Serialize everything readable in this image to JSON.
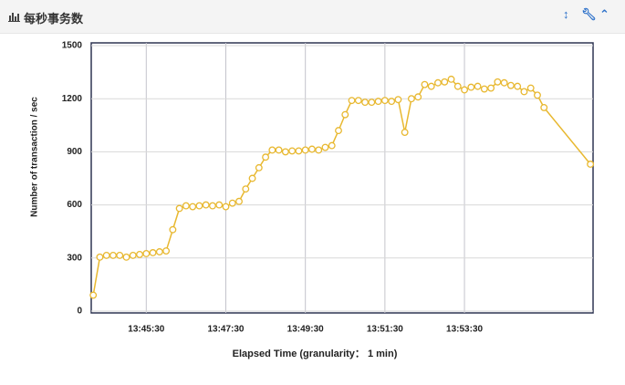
{
  "header": {
    "title": "每秒事务数"
  },
  "chart_data": {
    "type": "line",
    "y_label": "Number of transaction / sec",
    "x_label": "Elapsed Time (granularity： 1 min)",
    "color": "#e8b830",
    "grid": true,
    "ylim": [
      0,
      1500
    ],
    "yticks": [
      0,
      300,
      600,
      900,
      1200,
      1500
    ],
    "xlim": [
      "13:44:07",
      "13:56:44"
    ],
    "xticks": [
      "13:45:30",
      "13:47:30",
      "13:49:30",
      "13:51:30",
      "13:53:30"
    ],
    "x": [
      "13:44:10",
      "13:44:20",
      "13:44:30",
      "13:44:40",
      "13:44:50",
      "13:45:00",
      "13:45:10",
      "13:45:20",
      "13:45:30",
      "13:45:40",
      "13:45:50",
      "13:46:00",
      "13:46:10",
      "13:46:20",
      "13:46:30",
      "13:46:40",
      "13:46:50",
      "13:47:00",
      "13:47:10",
      "13:47:20",
      "13:47:30",
      "13:47:40",
      "13:47:50",
      "13:48:00",
      "13:48:10",
      "13:48:20",
      "13:48:30",
      "13:48:40",
      "13:48:50",
      "13:49:00",
      "13:49:10",
      "13:49:20",
      "13:49:30",
      "13:49:40",
      "13:49:50",
      "13:50:00",
      "13:50:10",
      "13:50:20",
      "13:50:30",
      "13:50:40",
      "13:50:50",
      "13:51:00",
      "13:51:10",
      "13:51:20",
      "13:51:30",
      "13:51:40",
      "13:51:50",
      "13:52:00",
      "13:52:10",
      "13:52:20",
      "13:52:30",
      "13:52:40",
      "13:52:50",
      "13:53:00",
      "13:53:10",
      "13:53:20",
      "13:53:30",
      "13:53:40",
      "13:53:50",
      "13:54:00",
      "13:54:10",
      "13:54:20",
      "13:54:30",
      "13:54:40",
      "13:54:50",
      "13:55:00",
      "13:55:10",
      "13:55:20",
      "13:55:30",
      "13:56:40"
    ],
    "values": [
      90,
      305,
      315,
      315,
      315,
      305,
      315,
      320,
      325,
      330,
      335,
      340,
      460,
      580,
      595,
      590,
      595,
      600,
      595,
      600,
      590,
      610,
      620,
      690,
      750,
      810,
      870,
      910,
      910,
      900,
      905,
      905,
      910,
      915,
      910,
      925,
      935,
      1020,
      1110,
      1190,
      1190,
      1180,
      1180,
      1185,
      1190,
      1185,
      1195,
      1010,
      1200,
      1210,
      1280,
      1270,
      1290,
      1295,
      1310,
      1270,
      1250,
      1265,
      1270,
      1255,
      1260,
      1295,
      1290,
      1275,
      1270,
      1240,
      1260,
      1220,
      1150,
      830
    ]
  }
}
